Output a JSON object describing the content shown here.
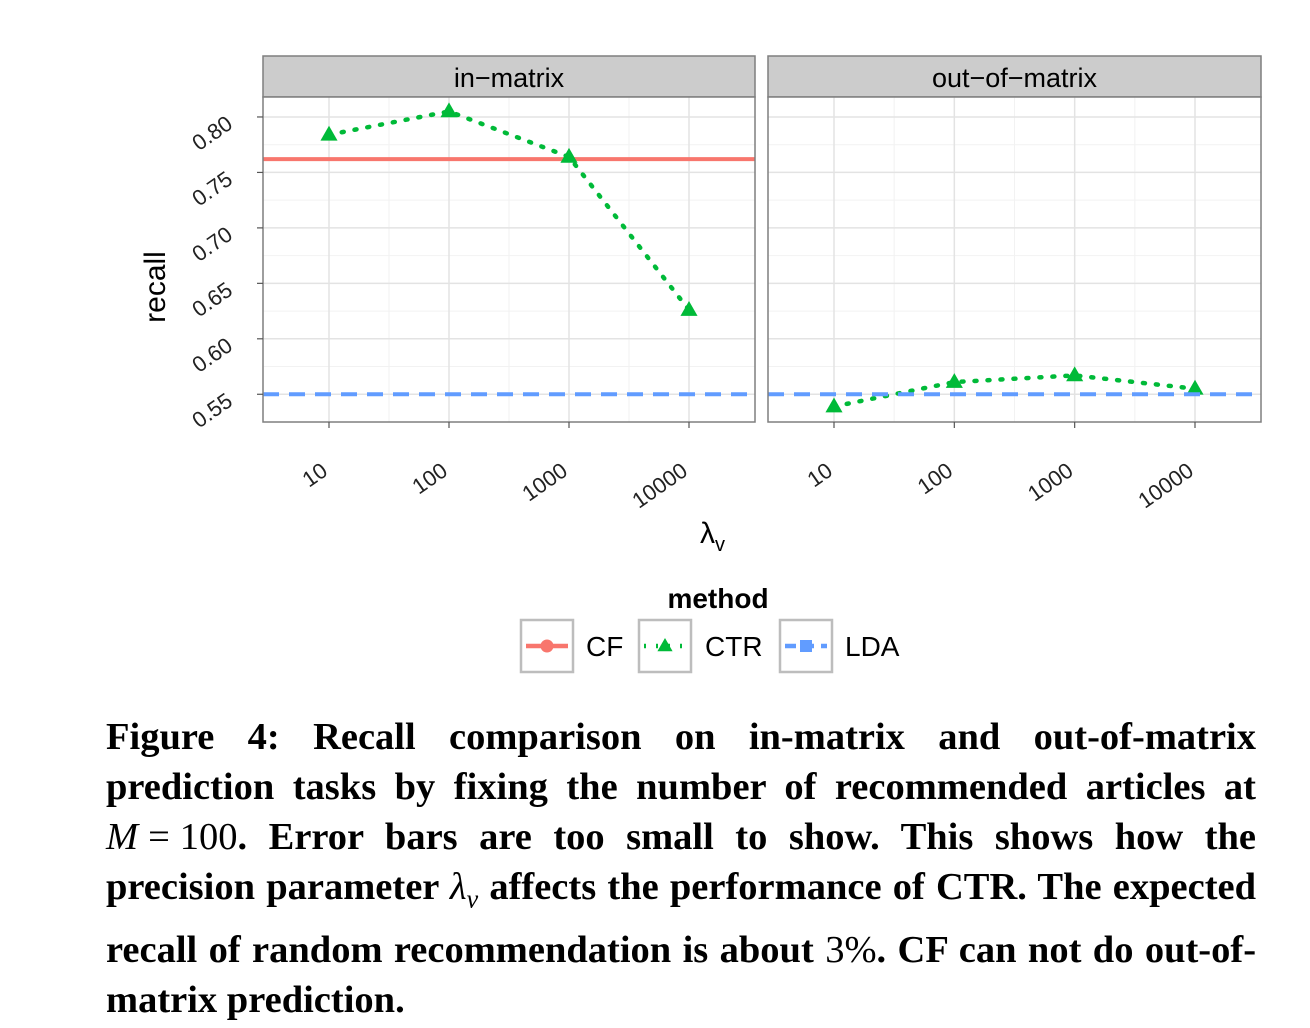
{
  "chart_data": {
    "type": "line",
    "facets": [
      "in−matrix",
      "out−of−matrix"
    ],
    "x_tick_labels": [
      "10",
      "100",
      "1000",
      "10000"
    ],
    "y_tick_labels": [
      "0.55",
      "0.60",
      "0.65",
      "0.70",
      "0.75",
      "0.80"
    ],
    "y_ticks": [
      0.55,
      0.6,
      0.65,
      0.7,
      0.75,
      0.8
    ],
    "ylim": [
      0.525,
      0.818
    ],
    "x_scale": "log",
    "ylabel": "recall",
    "xlabel_symbol": "λ",
    "xlabel_subscript": "v",
    "grid": true,
    "legend_title": "method",
    "legend_position": "bottom",
    "series": [
      {
        "name": "CF",
        "color": "#f8766d",
        "style": "solid",
        "marker": "circle",
        "panels": {
          "in−matrix": {
            "constant": 0.762
          }
        }
      },
      {
        "name": "CTR",
        "color": "#00ba38",
        "style": "dotted",
        "marker": "triangle",
        "panels": {
          "in−matrix": {
            "x": [
              10,
              100,
              1000,
              10000
            ],
            "y": [
              0.784,
              0.805,
              0.764,
              0.626
            ]
          },
          "out−of−matrix": {
            "x": [
              10,
              100,
              1000,
              10000
            ],
            "y": [
              0.539,
              0.561,
              0.567,
              0.555
            ]
          }
        }
      },
      {
        "name": "LDA",
        "color": "#619cff",
        "style": "dashed",
        "marker": "square",
        "panels": {
          "in−matrix": {
            "constant": 0.55
          },
          "out−of−matrix": {
            "constant": 0.55
          }
        }
      }
    ]
  },
  "caption": {
    "label": "Figure 4:",
    "part1": "Recall comparison on in-matrix and out-of-matrix prediction tasks by fixing the number of recommended articles at",
    "eq_var": "M",
    "eq_sign": "=",
    "eq_val": "100",
    "part2": ". Error bars are too small to show. This shows how the precision parameter",
    "lambda": "λ",
    "lambda_sub": "v",
    "part3": "affects the performance of CTR. The expected recall of random recommendation is about",
    "percent": "3%",
    "part4": ". CF can not do out-of-matrix prediction."
  }
}
